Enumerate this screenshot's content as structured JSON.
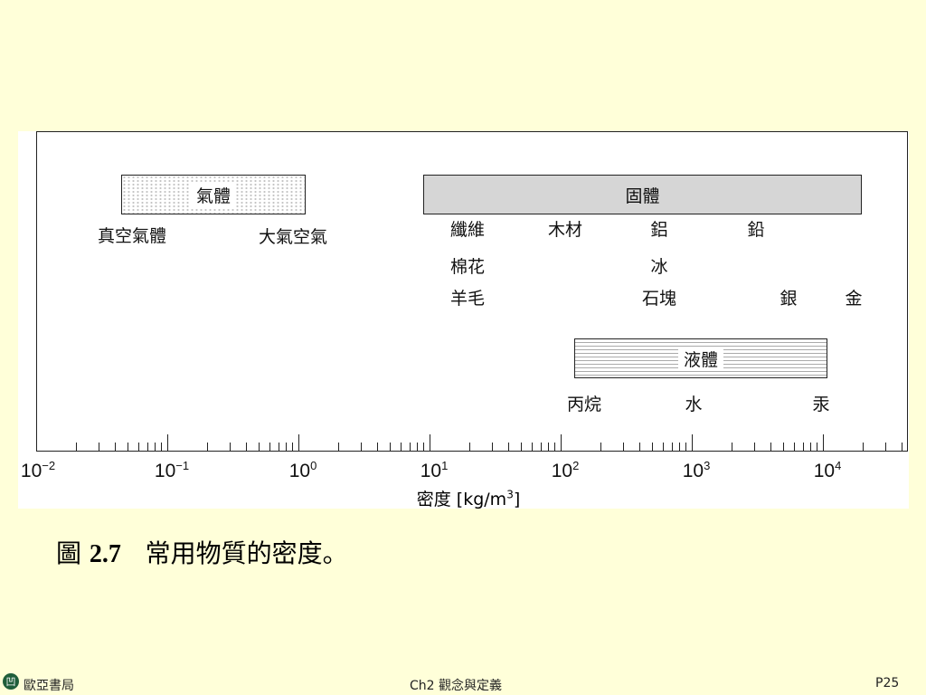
{
  "figure": {
    "axis": {
      "title": "密度 [kg/m",
      "title_sup": "3",
      "title_end": "]",
      "scale": "log",
      "range": [
        0.01,
        44000
      ],
      "ticks": [
        {
          "base": "10",
          "exp": "−2",
          "value": 0.01
        },
        {
          "base": "10",
          "exp": "−1",
          "value": 0.1
        },
        {
          "base": "10",
          "exp": "0",
          "value": 1
        },
        {
          "base": "10",
          "exp": "1",
          "value": 10
        },
        {
          "base": "10",
          "exp": "2",
          "value": 100
        },
        {
          "base": "10",
          "exp": "3",
          "value": 1000
        },
        {
          "base": "10",
          "exp": "4",
          "value": 10000
        }
      ]
    },
    "bars": {
      "gas": "氣體",
      "solid": "固體",
      "liquid": "液體"
    },
    "labels": {
      "vacuum_gas": "真空氣體",
      "air": "大氣空氣",
      "fiber": "纖維",
      "wood": "木材",
      "aluminum": "鋁",
      "lead": "鉛",
      "cotton": "棉花",
      "ice": "冰",
      "wool": "羊毛",
      "stone": "石塊",
      "silver": "銀",
      "gold": "金",
      "propane": "丙烷",
      "water": "水",
      "mercury": "汞"
    }
  },
  "caption": {
    "prefix": "圖 ",
    "number": "2.7",
    "text": "   常用物質的密度。"
  },
  "footer": {
    "logo": "凹",
    "publisher": "歐亞書局",
    "chapter": "Ch2 觀念與定義",
    "page": "P25"
  },
  "colors": {
    "background": "#ffffd9",
    "solid_bar": "#d6d6d6"
  }
}
